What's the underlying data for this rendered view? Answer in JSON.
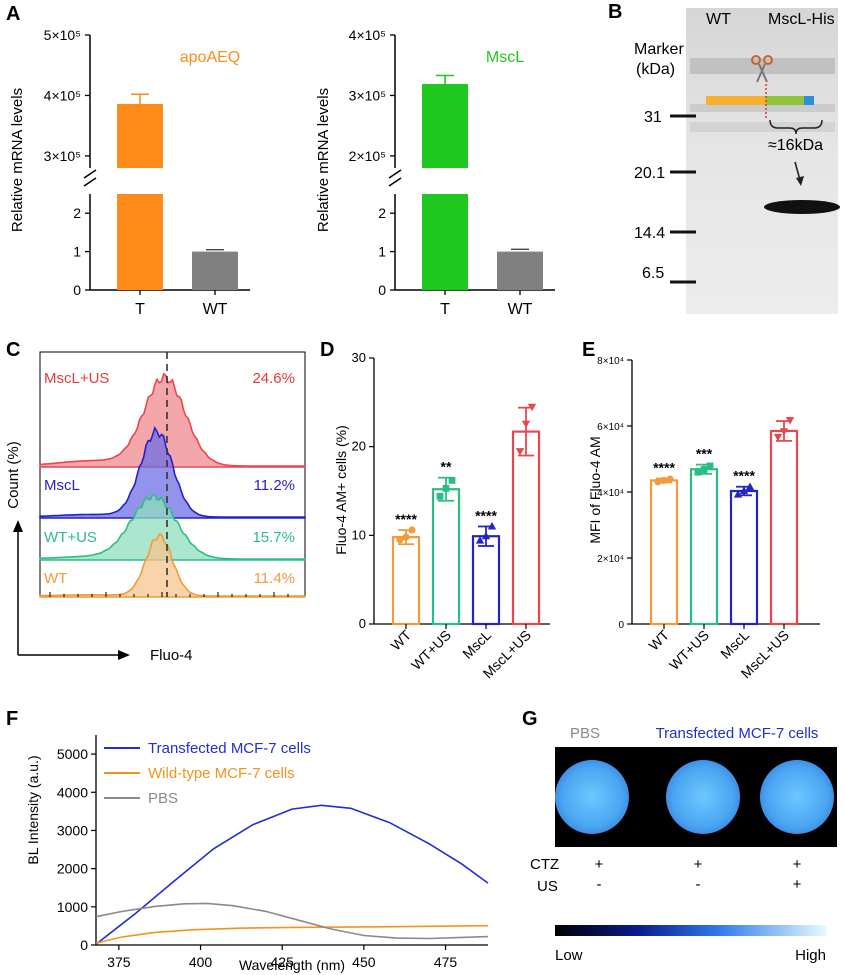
{
  "panels": {
    "A": "A",
    "B": "B",
    "C": "C",
    "D": "D",
    "E": "E",
    "F": "F",
    "G": "G"
  },
  "colors": {
    "orange": "#FF8C1A",
    "green": "#1FC81F",
    "gray": "#808080",
    "blue": "#2323C8",
    "teal": "#2BBE84",
    "red": "#E9474E",
    "wt_orange": "#F39A3A",
    "spec_blue": "#1F2FD0",
    "spec_orange": "#F5921E",
    "spec_gray": "#8A8A8A"
  },
  "chart_data": [
    {
      "id": "A1",
      "type": "bar",
      "axis_break": true,
      "title": "apoAEQ",
      "ylabel": "Relative mRNA levels",
      "categories": [
        "T",
        "WT"
      ],
      "values": [
        386000,
        1.0
      ],
      "errors": [
        16000,
        0.05
      ],
      "colors": [
        "#FF8C1A",
        "#808080"
      ],
      "lower_ylim": [
        0,
        2.5
      ],
      "lower_ticks": [
        "0",
        "1",
        "2"
      ],
      "upper_ylim": [
        280000,
        500000
      ],
      "upper_ticks": [
        "3×10⁵",
        "4×10⁵",
        "5×10⁵"
      ]
    },
    {
      "id": "A2",
      "type": "bar",
      "axis_break": true,
      "title": "MscL",
      "ylabel": "Relative mRNA levels",
      "categories": [
        "T",
        "WT"
      ],
      "values": [
        319000,
        1.0
      ],
      "errors": [
        14000,
        0.06
      ],
      "colors": [
        "#1FC81F",
        "#808080"
      ],
      "lower_ylim": [
        0,
        2.5
      ],
      "lower_ticks": [
        "0",
        "1",
        "2"
      ],
      "upper_ylim": [
        180000,
        400000
      ],
      "upper_ticks": [
        "2×10⁵",
        "3×10⁵",
        "4×10⁵"
      ]
    },
    {
      "id": "B",
      "type": "western_blot",
      "lanes": [
        "WT",
        "MscL-His"
      ],
      "marker_title": "Marker",
      "marker_unit": "(kDa)",
      "markers": [
        "31",
        "20.1",
        "14.4",
        "6.5"
      ],
      "band_label": "≈16kDa"
    },
    {
      "id": "C",
      "type": "flow_histogram",
      "xlabel": "Fluo-4",
      "ylabel": "Count (%)",
      "series": [
        {
          "name": "MscL+US",
          "percent": "24.6%"
        },
        {
          "name": "MscL",
          "percent": "11.2%"
        },
        {
          "name": "WT+US",
          "percent": "15.7%"
        },
        {
          "name": "WT",
          "percent": "11.4%"
        }
      ]
    },
    {
      "id": "D",
      "type": "bar",
      "ylabel": "Fluo-4 AM+ cells (%)",
      "categories": [
        "WT",
        "WT+US",
        "MscL",
        "MscL+US"
      ],
      "values": [
        9.8,
        15.2,
        9.9,
        21.7
      ],
      "errors": [
        0.8,
        1.3,
        1.1,
        2.7
      ],
      "points": [
        [
          9.5,
          9.8,
          10.6
        ],
        [
          14.4,
          15.3,
          16.2
        ],
        [
          9.4,
          9.9,
          11.0
        ],
        [
          19.5,
          22.6,
          24.5
        ]
      ],
      "significance": [
        "****",
        "**",
        "****",
        ""
      ],
      "ylim": [
        0,
        30
      ],
      "ticks": [
        "0",
        "10",
        "20",
        "30"
      ]
    },
    {
      "id": "E",
      "type": "bar",
      "ylabel": "MFI of Fluo-4 AM",
      "categories": [
        "WT",
        "WT+US",
        "MscL",
        "MscL+US"
      ],
      "values": [
        43500,
        46900,
        40300,
        58500
      ],
      "errors": [
        600,
        1400,
        1300,
        3000
      ],
      "points": [
        [
          43100,
          43500,
          43900
        ],
        [
          46000,
          46800,
          47900
        ],
        [
          39200,
          40300,
          41500
        ],
        [
          56700,
          58400,
          61800
        ]
      ],
      "significance": [
        "****",
        "***",
        "****",
        ""
      ],
      "ylim": [
        0,
        80000
      ],
      "ticks": [
        "0",
        "2×10⁴",
        "4×10⁴",
        "6×10⁴",
        "8×10⁴"
      ]
    },
    {
      "id": "F",
      "type": "line",
      "xlabel": "Wavelength (nm)",
      "ylabel": "BL Intensity (a.u.)",
      "xlim": [
        368,
        488
      ],
      "ylim": [
        0,
        5500
      ],
      "xticks": [
        "375",
        "400",
        "425",
        "450",
        "475"
      ],
      "yticks": [
        "0",
        "1000",
        "2000",
        "3000",
        "4000",
        "5000"
      ],
      "series": [
        {
          "name": "Transfected MCF-7 cells",
          "color": "#1F2FD0",
          "x": [
            368,
            380,
            392,
            404,
            416,
            428,
            437,
            446,
            458,
            470,
            480,
            488
          ],
          "y": [
            20,
            820,
            1680,
            2520,
            3150,
            3560,
            3660,
            3580,
            3200,
            2650,
            2120,
            1620
          ]
        },
        {
          "name": "Wild-type MCF-7 cells",
          "color": "#F5921E",
          "x": [
            368,
            376,
            386,
            398,
            412,
            428,
            444,
            460,
            476,
            488
          ],
          "y": [
            50,
            210,
            330,
            400,
            440,
            460,
            470,
            480,
            495,
            505
          ]
        },
        {
          "name": "PBS",
          "color": "#8A8A8A",
          "x": [
            368,
            376,
            386,
            395,
            402,
            410,
            420,
            430,
            440,
            450,
            460,
            470,
            480,
            488
          ],
          "y": [
            740,
            880,
            1010,
            1080,
            1090,
            1030,
            880,
            650,
            420,
            250,
            180,
            170,
            200,
            220
          ]
        }
      ]
    },
    {
      "id": "G",
      "type": "image_panel",
      "column_labels": [
        "PBS",
        "Transfected MCF-7 cells"
      ],
      "rows": [
        {
          "label": "CTZ",
          "values": [
            "+",
            "+",
            "+"
          ]
        },
        {
          "label": "US",
          "values": [
            "-",
            "-",
            "+"
          ]
        }
      ],
      "colorbar": {
        "low": "Low",
        "high": "High"
      }
    }
  ]
}
